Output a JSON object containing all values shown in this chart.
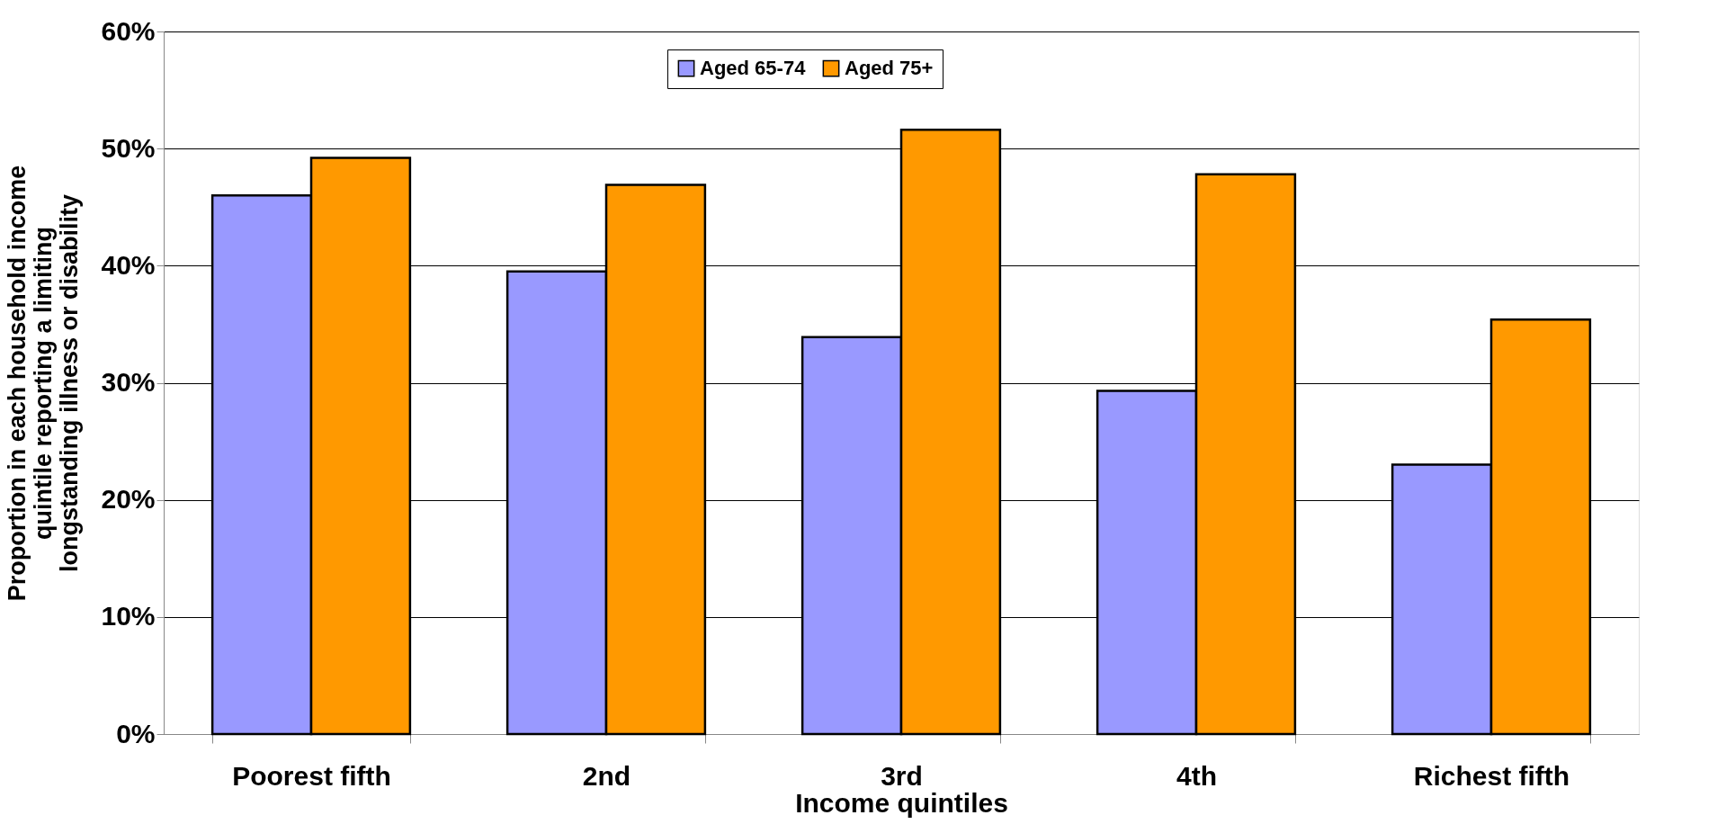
{
  "chart_data": {
    "type": "bar",
    "xlabel": "Income quintiles",
    "ylabel": "Proportion in each household income\nquintile reporting a limiting\nlongstanding illness or disability",
    "categories": [
      "Poorest fifth",
      "2nd",
      "3rd",
      "4th",
      "Richest fifth"
    ],
    "series": [
      {
        "name": "Aged 65-74",
        "color": "#9999ff",
        "values": [
          46.0,
          39.5,
          33.9,
          29.3,
          23.0
        ]
      },
      {
        "name": "Aged 75+",
        "color": "#ff9900",
        "values": [
          49.2,
          46.9,
          51.6,
          47.8,
          35.4
        ]
      }
    ],
    "ylim": [
      0,
      60
    ],
    "yticks": [
      {
        "value": 0,
        "label": "0%"
      },
      {
        "value": 10,
        "label": "10%"
      },
      {
        "value": 20,
        "label": "20%"
      },
      {
        "value": 30,
        "label": "30%"
      },
      {
        "value": 40,
        "label": "40%"
      },
      {
        "value": 50,
        "label": "50%"
      },
      {
        "value": 60,
        "label": "60%"
      }
    ],
    "grid": "y",
    "legend": "top"
  }
}
